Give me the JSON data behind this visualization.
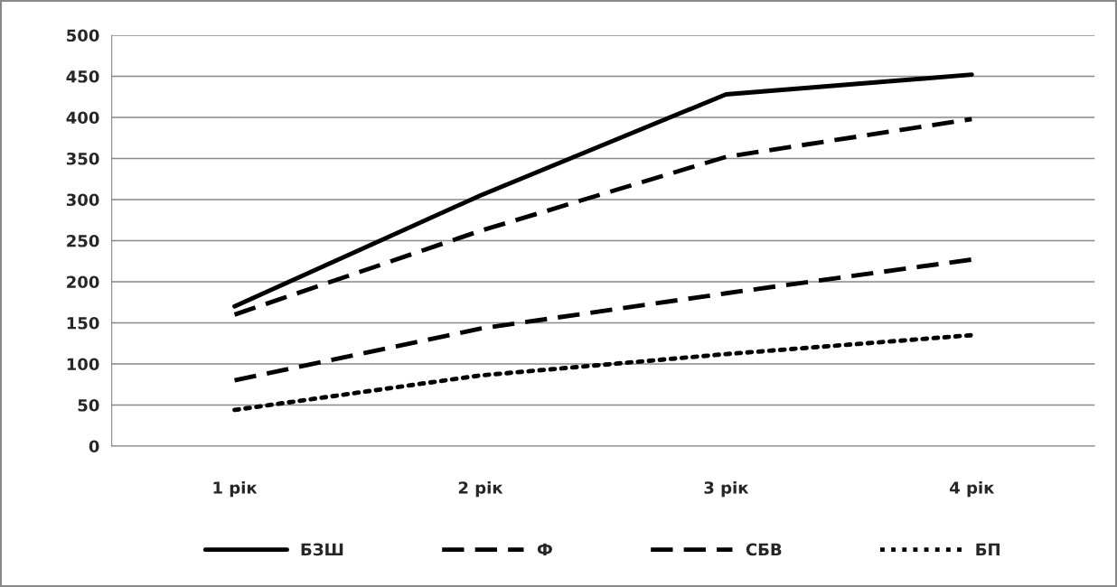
{
  "chart_data": {
    "type": "line",
    "categories": [
      "1 рік",
      "2 рік",
      "3 рік",
      "4 рік"
    ],
    "series": [
      {
        "name": "БЗШ",
        "color": "#000000",
        "line_style": "solid",
        "values": [
          170,
          305,
          428,
          452
        ]
      },
      {
        "name": "Ф",
        "color": "#000000",
        "line_style": "dashed",
        "values": [
          160,
          262,
          352,
          398
        ]
      },
      {
        "name": "СБВ",
        "color": "#000000",
        "line_style": "dashed",
        "values": [
          80,
          143,
          186,
          227
        ]
      },
      {
        "name": "БП",
        "color": "#000000",
        "line_style": "dotted",
        "values": [
          44,
          86,
          112,
          135
        ]
      }
    ],
    "ylim": [
      0,
      500
    ],
    "yticks": [
      0,
      50,
      100,
      150,
      200,
      250,
      300,
      350,
      400,
      450,
      500
    ],
    "grid": "y",
    "legend": "bottom",
    "marker": "none"
  }
}
